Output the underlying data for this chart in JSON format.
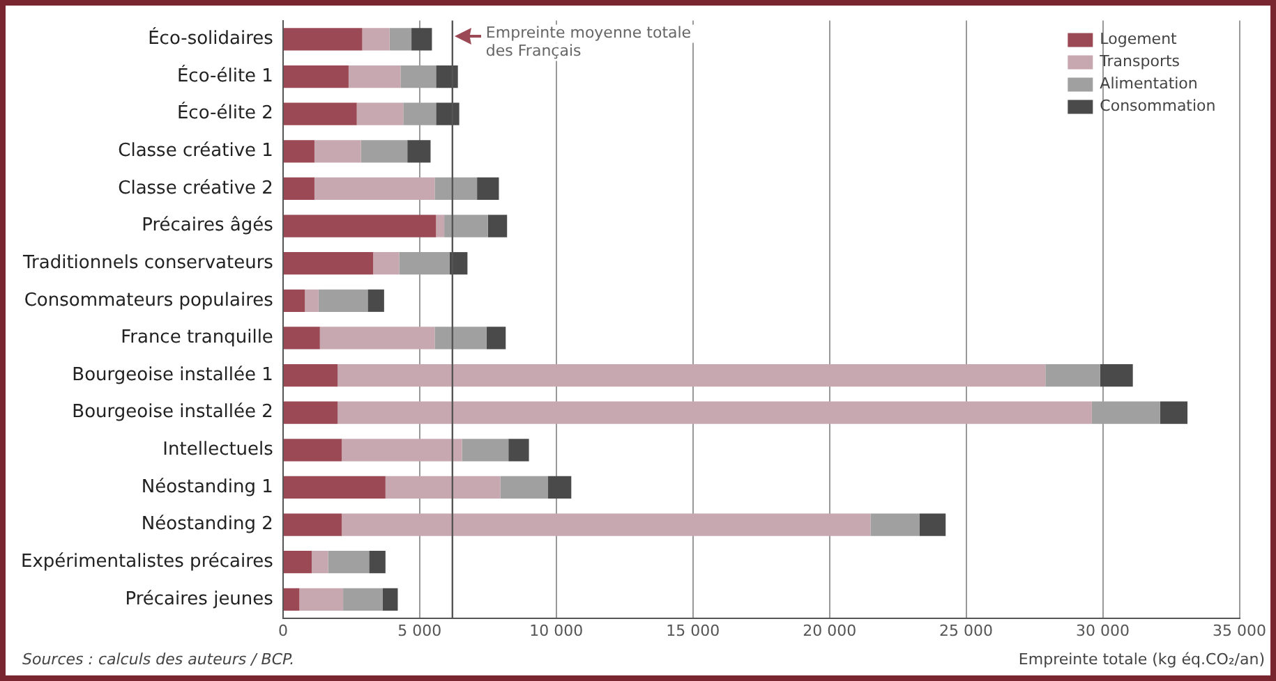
{
  "chart_data": {
    "type": "bar",
    "orientation": "horizontal",
    "stacked": true,
    "categories": [
      "Éco-solidaires",
      "Éco-élite 1",
      "Éco-élite 2",
      "Classe créative 1",
      "Classe créative 2",
      "Précaires âgés",
      "Traditionnels conservateurs",
      "Consommateurs populaires",
      "France tranquille",
      "Bourgeoise installée 1",
      "Bourgeoise installée 2",
      "Intellectuels",
      "Néostanding 1",
      "Néostanding 2",
      "Expérimentalistes précaires",
      "Précaires jeunes"
    ],
    "series": [
      {
        "name": "Logement",
        "color": "#9b4a55",
        "values": [
          2900,
          2400,
          2700,
          1150,
          1150,
          5600,
          3300,
          800,
          1350,
          2000,
          2000,
          2150,
          3750,
          2150,
          1050,
          600
        ]
      },
      {
        "name": "Transports",
        "color": "#c8a8b0",
        "values": [
          1000,
          1900,
          1700,
          1700,
          4400,
          300,
          950,
          500,
          4200,
          25900,
          27600,
          4400,
          4200,
          19350,
          600,
          1600
        ]
      },
      {
        "name": "Alimentation",
        "color": "#a0a0a0",
        "values": [
          800,
          1300,
          1200,
          1700,
          1550,
          1600,
          1850,
          1800,
          1900,
          2000,
          2500,
          1700,
          1750,
          1800,
          1500,
          1450
        ]
      },
      {
        "name": "Consommation",
        "color": "#4a4a4a",
        "values": [
          750,
          800,
          850,
          850,
          800,
          700,
          650,
          600,
          700,
          1200,
          1000,
          750,
          850,
          950,
          600,
          550
        ]
      }
    ],
    "xlim": [
      0,
      35000
    ],
    "xticks": [
      0,
      {
        "value": 5000,
        "label": "5 000"
      },
      {
        "value": 10000,
        "label": "10 000"
      },
      {
        "value": 15000,
        "label": "15 000"
      },
      {
        "value": 20000,
        "label": "20 000"
      },
      {
        "value": 25000,
        "label": "25 000"
      },
      {
        "value": 30000,
        "label": "30 000"
      },
      {
        "value": 35000,
        "label": "35 000"
      }
    ],
    "xlabel": "Empreinte totale (kg éq.CO₂/an)",
    "ref_lines": [
      {
        "axis": "x",
        "value": 6200,
        "label": "Empreinte moyenne totale des Français",
        "color": "#555555"
      }
    ],
    "annotations": [
      "Sources : calculs des auteurs / BCP."
    ],
    "grid": "x",
    "legend": "top right"
  }
}
